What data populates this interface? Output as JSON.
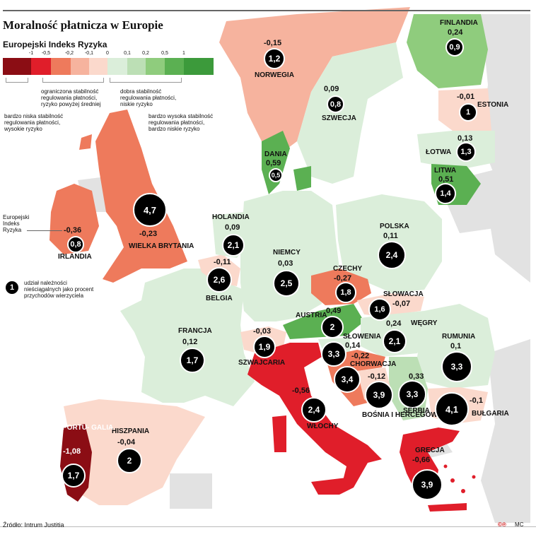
{
  "title": "Moralność płatnicza w Europie",
  "legend": {
    "heading": "Europejski Indeks Ryzyka",
    "ticks": [
      "-1",
      "-0,5",
      "-0,2",
      "-0,1",
      "0",
      "0,1",
      "0,2",
      "0,5",
      "1"
    ],
    "colors": [
      "#8b0d14",
      "#e01e2a",
      "#ee7a5c",
      "#f6b39e",
      "#fbd9cc",
      "#dbeeda",
      "#bcdfb5",
      "#8fcc7d",
      "#5bb052",
      "#3c9a3b"
    ],
    "desc_very_low": "bardzo niska stabilność regulowania płatności, wysokie ryzyko",
    "desc_limited": "ograniczona stabilność regulowania płatności, ryzyko powyżej średniej",
    "desc_good": "dobra stabilność regulowania płatności, niskie ryzyko",
    "desc_very_high": "bardzo wysoka stabilność regulowania płatności, bardzo niskie ryzyko"
  },
  "side_labels": {
    "index_label": "Europejski Indeks Ryzyka",
    "bubble_key_value": "1",
    "bubble_key_text": "udział należności nieściągalnych jako procent przychodów wierzyciela"
  },
  "countries": {
    "finlandia": {
      "name": "FINLANDIA",
      "index": "0,24",
      "share": "0,9"
    },
    "norwegia": {
      "name": "NORWEGIA",
      "index": "-0,15",
      "share": "1,2"
    },
    "szwecja": {
      "name": "SZWECJA",
      "index": "0,09",
      "share": "0,8"
    },
    "estonia": {
      "name": "ESTONIA",
      "index": "-0,01",
      "share": "1"
    },
    "lotwa": {
      "name": "ŁOTWA",
      "index": "0,13",
      "share": "1,3"
    },
    "litwa": {
      "name": "LITWA",
      "index": "0,51",
      "share": "1,4"
    },
    "dania": {
      "name": "DANIA",
      "index": "0,59",
      "share": "0,5"
    },
    "irlandia": {
      "name": "IRLANDIA",
      "index": "-0,36",
      "share": "0,8"
    },
    "wielka_brytania": {
      "name": "WIELKA BRYTANIA",
      "index": "-0,23",
      "share": "4,7"
    },
    "holandia": {
      "name": "HOLANDIA",
      "index": "0,09",
      "share": "2,1"
    },
    "belgia": {
      "name": "BELGIA",
      "index": "-0,11",
      "share": "2,6"
    },
    "niemcy": {
      "name": "NIEMCY",
      "index": "0,03",
      "share": "2,5"
    },
    "polska": {
      "name": "POLSKA",
      "index": "0,11",
      "share": "2,4"
    },
    "czechy": {
      "name": "CZECHY",
      "index": "-0,27",
      "share": "1,8"
    },
    "slowacja": {
      "name": "SŁOWACJA",
      "index": "-0,07",
      "share": "1,6"
    },
    "austria": {
      "name": "AUSTRIA",
      "index": "0,49",
      "share": "2"
    },
    "wegry": {
      "name": "WĘGRY",
      "index": "0,24",
      "share": "2,1"
    },
    "slowenia": {
      "name": "SŁOWENIA",
      "index": "0,14",
      "share": "3,3"
    },
    "chorwacja": {
      "name": "CHORWACJA",
      "index": "-0,22",
      "share": "3,4"
    },
    "bosnia": {
      "name": "BOŚNIA I HERCEGOWINA",
      "index": "-0,12",
      "share": "3,9"
    },
    "serbia": {
      "name": "SERBIA",
      "index": "0,33",
      "share": "3,3"
    },
    "rumunia": {
      "name": "RUMUNIA",
      "index": "0,1",
      "share": "3,3"
    },
    "bulgaria": {
      "name": "BUŁGARIA",
      "index": "-0,1",
      "share": "4,1"
    },
    "francja": {
      "name": "FRANCJA",
      "index": "0,12",
      "share": "1,7"
    },
    "szwajcaria": {
      "name": "SZWAJCARIA",
      "index": "-0,03",
      "share": "1,9"
    },
    "wlochy": {
      "name": "WŁOCHY",
      "index": "-0,56",
      "share": "2,4"
    },
    "grecja": {
      "name": "GRECJA",
      "index": "-0,66",
      "share": "3,9"
    },
    "hiszpania": {
      "name": "HISZPANIA",
      "index": "-0,04",
      "share": "2"
    },
    "portugalia": {
      "name": "PORTU- GALIA",
      "index": "-1,08",
      "share": "1,7"
    }
  },
  "source": "Źródło: Intrum Justitia",
  "credit": "MC"
}
